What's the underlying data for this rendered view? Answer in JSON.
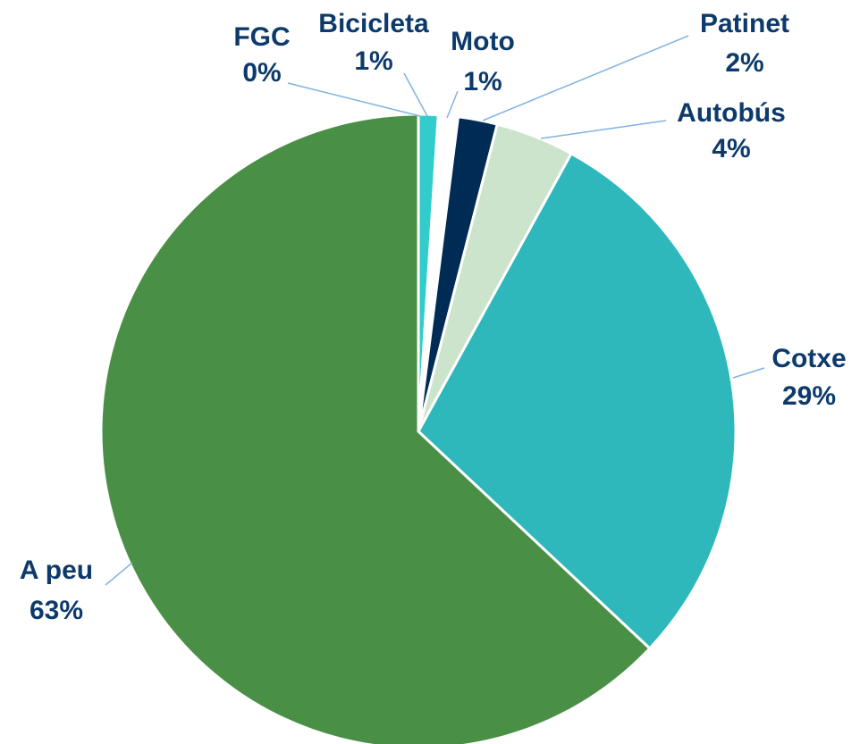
{
  "chart_data": {
    "type": "pie",
    "categories": [
      "FGC",
      "Bicicleta",
      "Moto",
      "Patinet",
      "Autobús",
      "Cotxe",
      "A peu"
    ],
    "values": [
      0,
      1,
      1,
      2,
      4,
      29,
      63
    ],
    "value_labels": [
      "0%",
      "1%",
      "1%",
      "2%",
      "4%",
      "29%",
      "63%"
    ],
    "colors": [
      "#2eb8b8",
      "#33cccc",
      "#ffffff",
      "#002b55",
      "#cce3cc",
      "#2eb8bb",
      "#4a8f46"
    ]
  }
}
